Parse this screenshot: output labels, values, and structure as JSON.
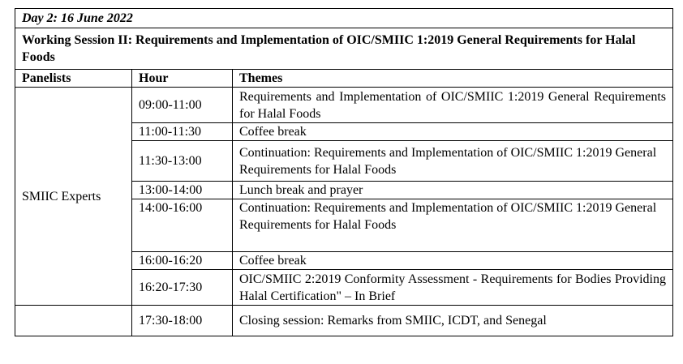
{
  "day_title": "Day 2: 16 June 2022",
  "session_title": "Working Session II: Requirements and Implementation of OIC/SMIIC 1:2019 General Requirements for Halal Foods",
  "headers": {
    "panelists": "Panelists",
    "hour": "Hour",
    "themes": "Themes"
  },
  "panelist": "SMIIC Experts",
  "rows": [
    {
      "hour": "09:00-11:00",
      "theme": "Requirements and Implementation of OIC/SMIIC 1:2019 General Requirements for Halal Foods"
    },
    {
      "hour": "11:00-11:30",
      "theme": "Coffee break"
    },
    {
      "hour": "11:30-13:00",
      "theme": "Continuation: Requirements and Implementation of OIC/SMIIC 1:2019 General Requirements for Halal Foods"
    },
    {
      "hour": "13:00-14:00",
      "theme": "Lunch break and prayer"
    },
    {
      "hour": "14:00-16:00",
      "theme": "Continuation: Requirements and Implementation of OIC/SMIIC 1:2019 General Requirements for Halal Foods"
    },
    {
      "hour": "16:00-16:20",
      "theme": "Coffee break"
    },
    {
      "hour": "16:20-17:30",
      "theme": "OIC/SMIIC 2:2019 Conformity Assessment - Requirements for Bodies Providing Halal Certification\" – In Brief"
    },
    {
      "hour": "17:30-18:00",
      "theme": "Closing session: Remarks from SMIIC, ICDT, and Senegal"
    }
  ]
}
